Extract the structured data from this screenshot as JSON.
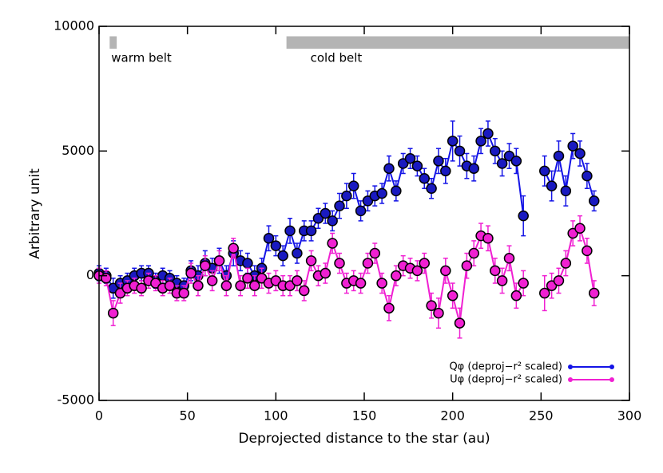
{
  "chart_data": {
    "type": "line",
    "xlabel": "Deprojected distance to the star (au)",
    "ylabel": "Arbitrary unit",
    "xlim": [
      0,
      300
    ],
    "ylim": [
      -5000,
      10000
    ],
    "xticks": [
      0,
      50,
      100,
      150,
      200,
      250,
      300
    ],
    "yticks": [
      -5000,
      0,
      5000,
      10000
    ],
    "legend": "lower right",
    "bands": [
      {
        "label": "warm belt",
        "x": [
          6,
          10
        ],
        "y": [
          9100,
          9600
        ],
        "color": "#b4b4b4"
      },
      {
        "label": "cold belt",
        "x": [
          106,
          300
        ],
        "y": [
          9100,
          9600
        ],
        "color": "#b4b4b4"
      }
    ],
    "x": [
      0,
      4,
      8,
      12,
      16,
      20,
      24,
      28,
      32,
      36,
      40,
      44,
      48,
      52,
      56,
      60,
      64,
      68,
      72,
      76,
      80,
      84,
      88,
      92,
      96,
      100,
      104,
      108,
      112,
      116,
      120,
      124,
      128,
      132,
      136,
      140,
      144,
      148,
      152,
      156,
      160,
      164,
      168,
      172,
      176,
      180,
      184,
      188,
      192,
      196,
      200,
      204,
      208,
      212,
      216,
      220,
      224,
      228,
      232,
      236,
      240,
      244,
      248,
      252,
      256,
      260,
      264,
      268,
      272,
      276,
      280
    ],
    "series": [
      {
        "name": "Qφ (deproj−r² scaled)",
        "color": "#1414e6",
        "marker_color": "#1a1ac0",
        "values": [
          100,
          0,
          -500,
          -300,
          -200,
          0,
          100,
          100,
          -200,
          0,
          -100,
          -300,
          -400,
          200,
          0,
          500,
          300,
          600,
          0,
          900,
          600,
          500,
          0,
          300,
          1500,
          1200,
          800,
          1800,
          900,
          1800,
          1800,
          2300,
          2500,
          2200,
          2800,
          3200,
          3600,
          2600,
          3000,
          3200,
          3300,
          4300,
          3400,
          4500,
          4700,
          4400,
          3900,
          3500,
          4600,
          4200,
          5400,
          5000,
          4400,
          4300,
          5400,
          5700,
          5000,
          4500,
          4800,
          4600,
          2400,
          null,
          null,
          4200,
          3600,
          4800,
          3400,
          5200,
          4900,
          4000,
          3000
        ],
        "errors": [
          300,
          300,
          400,
          300,
          300,
          300,
          300,
          300,
          300,
          300,
          300,
          300,
          300,
          400,
          400,
          500,
          400,
          500,
          400,
          500,
          400,
          400,
          400,
          400,
          500,
          400,
          400,
          500,
          400,
          400,
          400,
          400,
          400,
          400,
          500,
          500,
          500,
          400,
          400,
          400,
          400,
          500,
          400,
          400,
          400,
          400,
          400,
          400,
          500,
          500,
          800,
          600,
          500,
          500,
          500,
          500,
          500,
          500,
          500,
          500,
          800,
          null,
          null,
          600,
          600,
          600,
          600,
          500,
          500,
          500,
          400
        ]
      },
      {
        "name": "Uφ (deproj−r² scaled)",
        "color": "#f020d2",
        "marker_color": "#f020d2",
        "values": [
          0,
          -100,
          -1500,
          -700,
          -500,
          -400,
          -500,
          -200,
          -300,
          -500,
          -400,
          -700,
          -700,
          100,
          -400,
          400,
          -200,
          600,
          -400,
          1100,
          -400,
          -100,
          -400,
          -100,
          -300,
          -200,
          -400,
          -400,
          -200,
          -600,
          600,
          0,
          100,
          1300,
          500,
          -300,
          -200,
          -300,
          500,
          900,
          -300,
          -1300,
          0,
          400,
          300,
          200,
          500,
          -1200,
          -1500,
          200,
          -800,
          -1900,
          400,
          900,
          1600,
          1500,
          200,
          -200,
          700,
          -800,
          -300,
          null,
          null,
          -700,
          -400,
          -200,
          500,
          1700,
          1900,
          1000,
          -700
        ],
        "errors": [
          300,
          300,
          500,
          400,
          300,
          300,
          300,
          300,
          300,
          300,
          300,
          300,
          300,
          400,
          400,
          400,
          400,
          400,
          400,
          400,
          400,
          400,
          400,
          400,
          400,
          400,
          400,
          400,
          400,
          400,
          400,
          400,
          400,
          400,
          400,
          400,
          400,
          400,
          400,
          400,
          400,
          500,
          400,
          400,
          400,
          400,
          400,
          500,
          600,
          500,
          500,
          600,
          500,
          500,
          500,
          500,
          500,
          500,
          500,
          500,
          500,
          null,
          null,
          700,
          500,
          500,
          500,
          500,
          500,
          500,
          500
        ]
      }
    ]
  }
}
